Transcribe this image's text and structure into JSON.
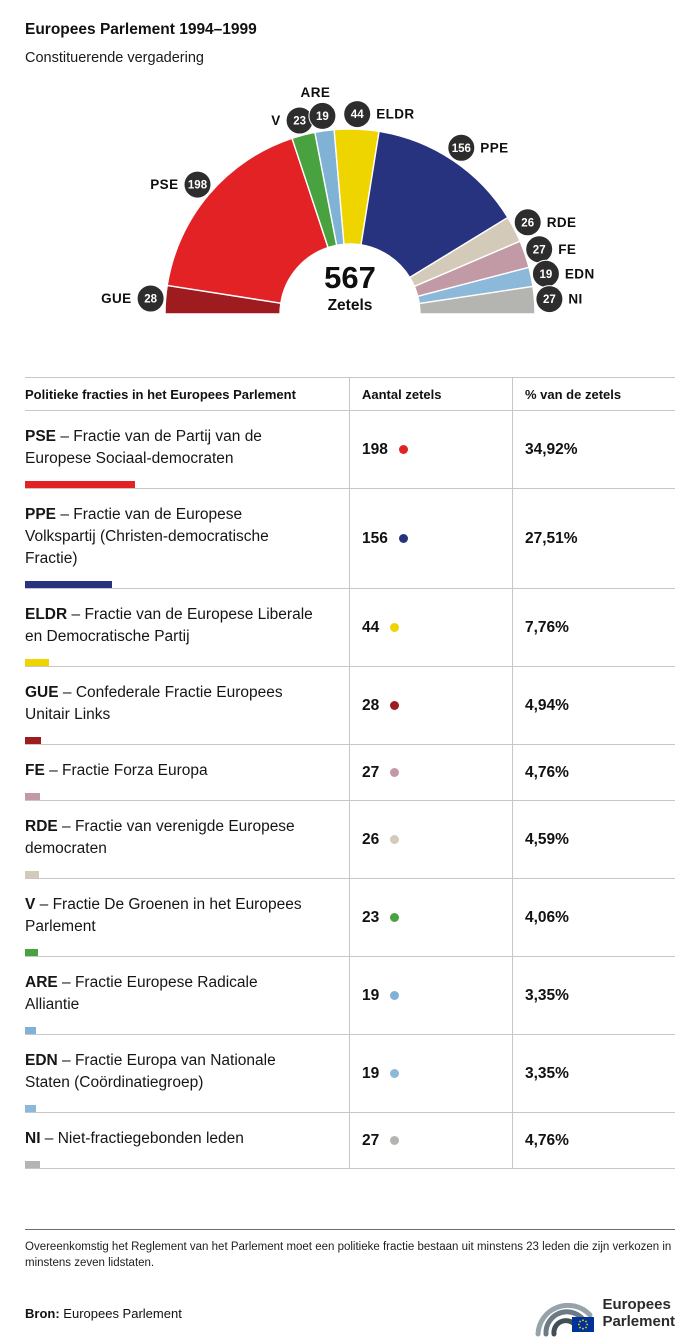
{
  "header": {
    "title": "Europees Parlement 1994–1999",
    "subtitle": "Constituerende vergadering"
  },
  "chart_data": {
    "type": "pie",
    "variant": "half-donut-hemicycle",
    "title": "Constituerende vergadering 1994–1999",
    "total": 567,
    "total_label": "567",
    "total_caption": "Zetels",
    "legend_position": "table-below",
    "slices": [
      {
        "id": "GUE",
        "seats": 28,
        "color": "#9e1b1f",
        "label_side": "left"
      },
      {
        "id": "PSE",
        "seats": 198,
        "color": "#e32226",
        "label_side": "left"
      },
      {
        "id": "V",
        "seats": 23,
        "color": "#48a23f",
        "label_side": "left"
      },
      {
        "id": "ARE",
        "seats": 19,
        "color": "#7fb2d4",
        "label_side": "above"
      },
      {
        "id": "ELDR",
        "seats": 44,
        "color": "#efd500",
        "label_side": "right"
      },
      {
        "id": "PPE",
        "seats": 156,
        "color": "#27337e",
        "label_side": "right"
      },
      {
        "id": "RDE",
        "seats": 26,
        "color": "#d3cab9",
        "label_side": "right"
      },
      {
        "id": "FE",
        "seats": 27,
        "color": "#c29aa5",
        "label_side": "right"
      },
      {
        "id": "EDN",
        "seats": 19,
        "color": "#8cb9da",
        "label_side": "right"
      },
      {
        "id": "NI",
        "seats": 27,
        "color": "#b4b4b1",
        "label_side": "right"
      }
    ]
  },
  "table": {
    "separator": " – ",
    "headers": [
      "Politieke fracties in het Europees Parlement",
      "Aantal zetels",
      "% van de zetels"
    ],
    "rows": [
      {
        "abbr": "PSE",
        "name": "Fractie van de Partij van de Europese Sociaal-democraten",
        "seats": "198",
        "pct": "34,92%"
      },
      {
        "abbr": "PPE",
        "name": "Fractie van de Europese Volkspartij (Christen-democratische Fractie)",
        "seats": "156",
        "pct": "27,51%"
      },
      {
        "abbr": "ELDR",
        "name": "Fractie van de Europese Liberale en Democratische Partij",
        "seats": "44",
        "pct": "7,76%"
      },
      {
        "abbr": "GUE",
        "name": "Confederale Fractie Europees Unitair Links",
        "seats": "28",
        "pct": "4,94%"
      },
      {
        "abbr": "FE",
        "name": "Fractie Forza Europa",
        "seats": "27",
        "pct": "4,76%"
      },
      {
        "abbr": "RDE",
        "name": "Fractie van verenigde Europese democraten",
        "seats": "26",
        "pct": "4,59%"
      },
      {
        "abbr": "V",
        "name": "Fractie De Groenen in het Europees Parlement",
        "seats": "23",
        "pct": "4,06%"
      },
      {
        "abbr": "ARE",
        "name": "Fractie Europese Radicale Alliantie",
        "seats": "19",
        "pct": "3,35%"
      },
      {
        "abbr": "EDN",
        "name": "Fractie Europa van Nationale Staten (Coördinatiegroep)",
        "seats": "19",
        "pct": "3,35%"
      },
      {
        "abbr": "NI",
        "name": "Niet-fractiegebonden leden",
        "seats": "27",
        "pct": "4,76%"
      }
    ]
  },
  "footnote": "Overeenkomstig het Reglement van het Parlement moet een politieke fractie bestaan uit minstens 23 leden die zijn verkozen in minstens zeven lidstaten.",
  "source": {
    "label": "Bron:",
    "text": "Europees Parlement"
  },
  "logo": {
    "line1": "Europees",
    "line2": "Parlement"
  }
}
